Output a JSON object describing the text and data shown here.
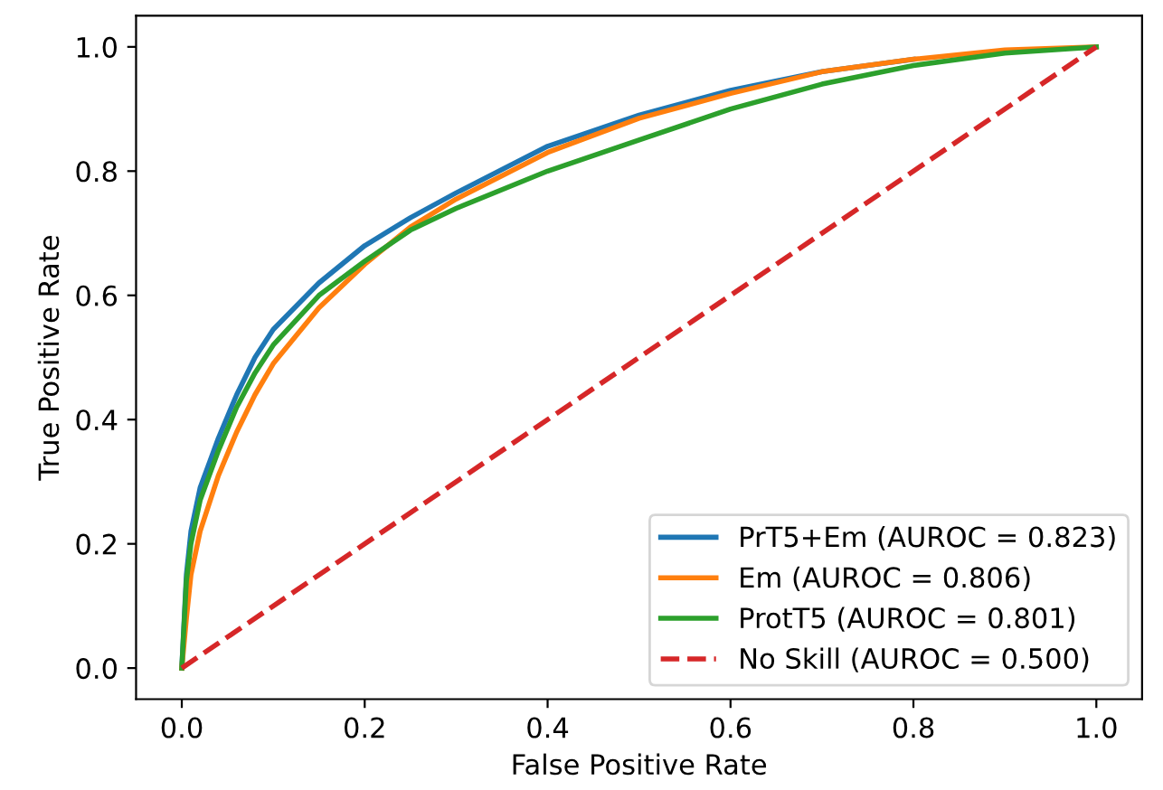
{
  "chart_data": {
    "type": "line",
    "xlabel": "False Positive Rate",
    "ylabel": "True Positive Rate",
    "xlim": [
      -0.05,
      1.05
    ],
    "ylim": [
      -0.05,
      1.05
    ],
    "xticks": [
      {
        "value": 0,
        "label": "0.0"
      },
      {
        "value": 0.2,
        "label": "0.2"
      },
      {
        "value": 0.4,
        "label": "0.4"
      },
      {
        "value": 0.6,
        "label": "0.6"
      },
      {
        "value": 0.8,
        "label": "0.8"
      },
      {
        "value": 1,
        "label": "1.0"
      }
    ],
    "yticks": [
      {
        "value": 0,
        "label": "0.0"
      },
      {
        "value": 0.2,
        "label": "0.2"
      },
      {
        "value": 0.4,
        "label": "0.4"
      },
      {
        "value": 0.6,
        "label": "0.6"
      },
      {
        "value": 0.8,
        "label": "0.8"
      },
      {
        "value": 1,
        "label": "1.0"
      }
    ],
    "grid": false,
    "legend": "bottom right",
    "series": [
      {
        "name": "PrT5+Em (AUROC = 0.823)",
        "color": "#1f77b4",
        "line_style": "solid",
        "x": [
          0,
          0.005,
          0.01,
          0.02,
          0.04,
          0.06,
          0.08,
          0.1,
          0.15,
          0.2,
          0.25,
          0.3,
          0.4,
          0.5,
          0.6,
          0.7,
          0.8
        ],
        "values": [
          0,
          0.15,
          0.22,
          0.29,
          0.37,
          0.44,
          0.5,
          0.545,
          0.62,
          0.68,
          0.725,
          0.765,
          0.84,
          0.89,
          0.93,
          0.96,
          0.98
        ]
      },
      {
        "name": "Em (AUROC = 0.806)",
        "color": "#ff7f0e",
        "line_style": "solid",
        "x": [
          0,
          0.005,
          0.01,
          0.02,
          0.04,
          0.06,
          0.08,
          0.1,
          0.15,
          0.2,
          0.25,
          0.3,
          0.4,
          0.5,
          0.6,
          0.7,
          0.8,
          0.9,
          1
        ],
        "values": [
          0,
          0.08,
          0.15,
          0.22,
          0.31,
          0.38,
          0.44,
          0.49,
          0.58,
          0.65,
          0.71,
          0.755,
          0.83,
          0.885,
          0.925,
          0.96,
          0.98,
          0.995,
          1
        ]
      },
      {
        "name": "ProtT5 (AUROC = 0.801)",
        "color": "#2ca02c",
        "line_style": "solid",
        "x": [
          0,
          0.005,
          0.01,
          0.02,
          0.04,
          0.06,
          0.08,
          0.1,
          0.15,
          0.2,
          0.25,
          0.3,
          0.4,
          0.5,
          0.6,
          0.7,
          0.8,
          0.9,
          1
        ],
        "values": [
          0,
          0.14,
          0.2,
          0.27,
          0.35,
          0.42,
          0.475,
          0.52,
          0.6,
          0.655,
          0.705,
          0.74,
          0.8,
          0.85,
          0.9,
          0.94,
          0.97,
          0.99,
          1
        ]
      },
      {
        "name": "No Skill (AUROC = 0.500)",
        "color": "#d62728",
        "line_style": "dashed",
        "x": [
          0,
          1
        ],
        "values": [
          0,
          1
        ]
      }
    ]
  }
}
